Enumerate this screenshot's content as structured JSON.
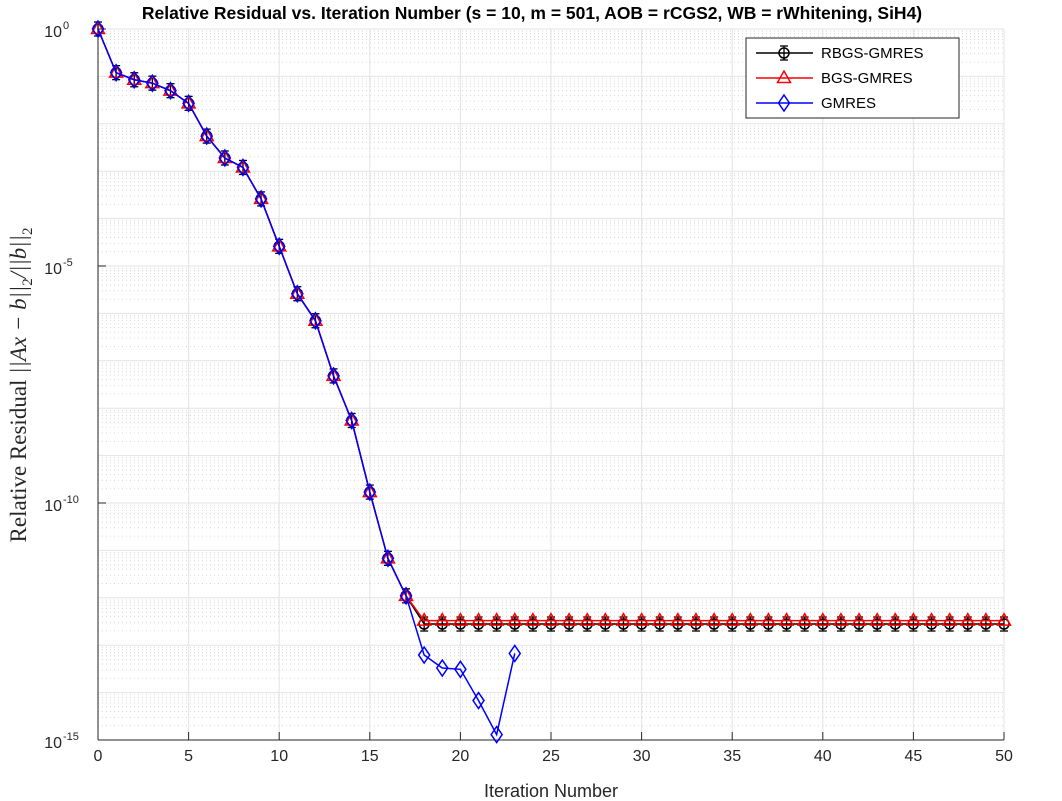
{
  "chart_data": {
    "type": "line",
    "title": "Relative Residual vs. Iteration Number (s = 10, m = 501, AOB = rCGS2, WB = rWhitening, SiH4)",
    "xlabel": "Iteration Number",
    "ylabel": {
      "prefix": "Relative Residual ",
      "expr": "||Ax − b||",
      "sub1": "2",
      "mid": "/||b||",
      "sub2": "2"
    },
    "xlim": [
      0,
      50
    ],
    "ylim": [
      1e-15,
      1
    ],
    "yscale": "log",
    "grid": true,
    "legend_position": "top-right",
    "x_ticks": [
      0,
      5,
      10,
      15,
      20,
      25,
      30,
      35,
      40,
      45,
      50
    ],
    "y_ticks": [
      {
        "base": "10",
        "exp": "0",
        "value": 1
      },
      {
        "base": "10",
        "exp": "-5",
        "value": 1e-05
      },
      {
        "base": "10",
        "exp": "-10",
        "value": 1e-10
      },
      {
        "base": "10",
        "exp": "-15",
        "value": 1e-15
      }
    ],
    "series": [
      {
        "name": "RBGS-GMRES",
        "color": "#000000",
        "marker": "circle-errorbar",
        "x": [
          0,
          1,
          2,
          3,
          4,
          5,
          6,
          7,
          8,
          9,
          10,
          11,
          12,
          13,
          14,
          15,
          16,
          17,
          18,
          19,
          20,
          21,
          22,
          23,
          24,
          25,
          26,
          27,
          28,
          29,
          30,
          31,
          32,
          33,
          34,
          35,
          36,
          37,
          38,
          39,
          40,
          41,
          42,
          43,
          44,
          45,
          46,
          47,
          48,
          49,
          50
        ],
        "y": [
          1,
          0.12,
          0.085,
          0.072,
          0.05,
          0.027,
          0.0055,
          0.0019,
          0.0012,
          0.00026,
          2.6e-05,
          2.6e-06,
          7e-07,
          4.8e-08,
          5.5e-09,
          1.7e-10,
          6.8e-12,
          1.1e-12,
          2.8e-13,
          2.8e-13,
          2.8e-13,
          2.8e-13,
          2.8e-13,
          2.8e-13,
          2.8e-13,
          2.8e-13,
          2.8e-13,
          2.8e-13,
          2.8e-13,
          2.8e-13,
          2.8e-13,
          2.8e-13,
          2.8e-13,
          2.8e-13,
          2.8e-13,
          2.8e-13,
          2.8e-13,
          2.8e-13,
          2.8e-13,
          2.8e-13,
          2.8e-13,
          2.8e-13,
          2.8e-13,
          2.8e-13,
          2.8e-13,
          2.8e-13,
          2.8e-13,
          2.8e-13,
          2.8e-13,
          2.8e-13,
          2.8e-13
        ]
      },
      {
        "name": "BGS-GMRES",
        "color": "#ff0000",
        "marker": "triangle",
        "x": [
          0,
          1,
          2,
          3,
          4,
          5,
          6,
          7,
          8,
          9,
          10,
          11,
          12,
          13,
          14,
          15,
          16,
          17,
          18,
          19,
          20,
          21,
          22,
          23,
          24,
          25,
          26,
          27,
          28,
          29,
          30,
          31,
          32,
          33,
          34,
          35,
          36,
          37,
          38,
          39,
          40,
          41,
          42,
          43,
          44,
          45,
          46,
          47,
          48,
          49,
          50
        ],
        "y": [
          1,
          0.12,
          0.085,
          0.072,
          0.05,
          0.027,
          0.0055,
          0.0019,
          0.0012,
          0.00026,
          2.6e-05,
          2.6e-06,
          7e-07,
          4.8e-08,
          5.5e-09,
          1.7e-10,
          6.8e-12,
          1.1e-12,
          3.3e-13,
          3.3e-13,
          3.3e-13,
          3.3e-13,
          3.3e-13,
          3.3e-13,
          3.3e-13,
          3.3e-13,
          3.3e-13,
          3.3e-13,
          3.3e-13,
          3.3e-13,
          3.3e-13,
          3.3e-13,
          3.3e-13,
          3.3e-13,
          3.3e-13,
          3.3e-13,
          3.3e-13,
          3.3e-13,
          3.3e-13,
          3.3e-13,
          3.3e-13,
          3.3e-13,
          3.3e-13,
          3.3e-13,
          3.3e-13,
          3.3e-13,
          3.3e-13,
          3.3e-13,
          3.3e-13,
          3.3e-13,
          3.3e-13
        ]
      },
      {
        "name": "GMRES",
        "color": "#0000ff",
        "marker": "diamond",
        "x": [
          0,
          1,
          2,
          3,
          4,
          5,
          6,
          7,
          8,
          9,
          10,
          11,
          12,
          13,
          14,
          15,
          16,
          17,
          18,
          19,
          20,
          21,
          22,
          23
        ],
        "y": [
          1,
          0.12,
          0.085,
          0.072,
          0.05,
          0.027,
          0.0055,
          0.0019,
          0.0012,
          0.00026,
          2.6e-05,
          2.6e-06,
          7e-07,
          4.8e-08,
          5.5e-09,
          1.7e-10,
          6.8e-12,
          1.1e-12,
          6.2e-14,
          3.3e-14,
          3.1e-14,
          6.8e-15,
          1.3e-15,
          6.7e-14
        ]
      }
    ]
  }
}
